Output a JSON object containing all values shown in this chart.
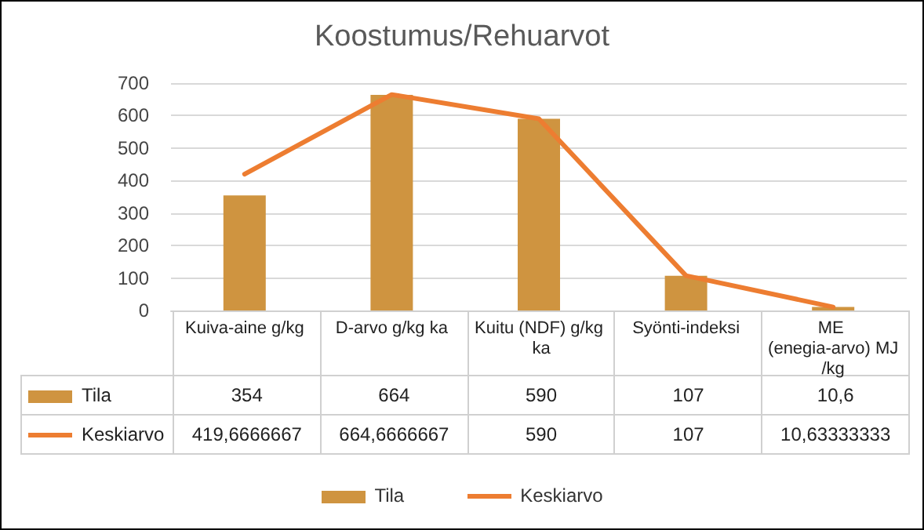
{
  "chart_data": {
    "type": "bar",
    "title": "Koostumus/Rehuarvot",
    "categories": [
      "Kuiva-aine g/kg",
      "D-arvo g/kg ka",
      "Kuitu (NDF) g/kg ka",
      "Syönti-indeksi",
      "ME (enegia-arvo) MJ/kg"
    ],
    "series": [
      {
        "name": "Tila",
        "color": "#cf9440",
        "values": [
          354,
          664,
          590,
          107,
          10.6
        ],
        "value_labels": [
          "354",
          "664",
          "590",
          "107",
          "10,6"
        ]
      },
      {
        "name": "Keskiarvo",
        "type": "line",
        "color": "#ed7d31",
        "values": [
          419.6666667,
          664.6666667,
          590,
          107,
          10.63333333
        ],
        "value_labels": [
          "419,6666667",
          "664,6666667",
          "590",
          "107",
          "10,63333333"
        ]
      }
    ],
    "ylim": [
      0,
      700
    ],
    "yticks": [
      0,
      100,
      200,
      300,
      400,
      500,
      600,
      700
    ],
    "grid": "y",
    "legend": "bottom"
  }
}
